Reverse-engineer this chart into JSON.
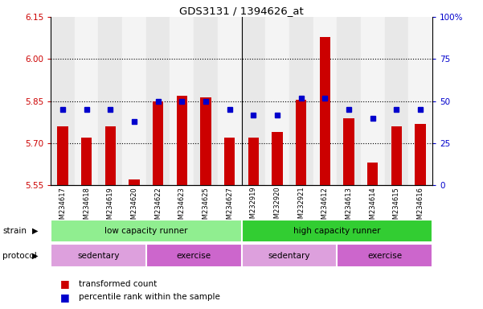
{
  "title": "GDS3131 / 1394626_at",
  "samples": [
    "GSM234617",
    "GSM234618",
    "GSM234619",
    "GSM234620",
    "GSM234622",
    "GSM234623",
    "GSM234625",
    "GSM234627",
    "GSM232919",
    "GSM232920",
    "GSM232921",
    "GSM234612",
    "GSM234613",
    "GSM234614",
    "GSM234615",
    "GSM234616"
  ],
  "transformed_count": [
    5.76,
    5.72,
    5.76,
    5.57,
    5.85,
    5.87,
    5.865,
    5.72,
    5.72,
    5.74,
    5.855,
    6.08,
    5.79,
    5.63,
    5.76,
    5.77
  ],
  "percentile_rank": [
    45,
    45,
    45,
    38,
    50,
    50,
    50,
    45,
    42,
    42,
    52,
    52,
    45,
    40,
    45,
    45
  ],
  "ylim_left": [
    5.55,
    6.15
  ],
  "ylim_right": [
    0,
    100
  ],
  "yticks_left": [
    5.55,
    5.7,
    5.85,
    6.0,
    6.15
  ],
  "yticks_right": [
    0,
    25,
    50,
    75,
    100
  ],
  "bar_color": "#cc0000",
  "dot_color": "#0000cc",
  "strain_groups": [
    {
      "label": "low capacity runner",
      "start": 0,
      "end": 8,
      "color": "#90ee90"
    },
    {
      "label": "high capacity runner",
      "start": 8,
      "end": 16,
      "color": "#32cd32"
    }
  ],
  "protocol_colors_alt": [
    "#dda0dd",
    "#cc66cc"
  ],
  "protocol_groups": [
    {
      "label": "sedentary",
      "start": 0,
      "end": 4,
      "color_idx": 0
    },
    {
      "label": "exercise",
      "start": 4,
      "end": 8,
      "color_idx": 1
    },
    {
      "label": "sedentary",
      "start": 8,
      "end": 12,
      "color_idx": 0
    },
    {
      "label": "exercise",
      "start": 12,
      "end": 16,
      "color_idx": 1
    }
  ],
  "legend_items": [
    {
      "label": "transformed count",
      "color": "#cc0000"
    },
    {
      "label": "percentile rank within the sample",
      "color": "#0000cc"
    }
  ],
  "tick_label_color": "#cc0000",
  "right_tick_color": "#0000cc",
  "col_bg_even": "#e8e8e8",
  "col_bg_odd": "#f4f4f4"
}
